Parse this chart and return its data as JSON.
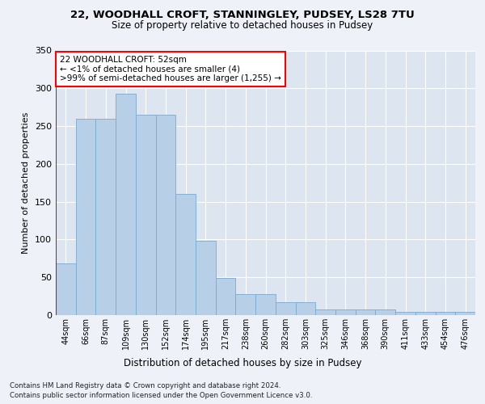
{
  "title1": "22, WOODHALL CROFT, STANNINGLEY, PUDSEY, LS28 7TU",
  "title2": "Size of property relative to detached houses in Pudsey",
  "xlabel": "Distribution of detached houses by size in Pudsey",
  "ylabel": "Number of detached properties",
  "bar_labels": [
    "44sqm",
    "66sqm",
    "87sqm",
    "109sqm",
    "130sqm",
    "152sqm",
    "174sqm",
    "195sqm",
    "217sqm",
    "238sqm",
    "260sqm",
    "282sqm",
    "303sqm",
    "325sqm",
    "346sqm",
    "368sqm",
    "390sqm",
    "411sqm",
    "433sqm",
    "454sqm",
    "476sqm"
  ],
  "bar_values": [
    68,
    260,
    260,
    293,
    265,
    265,
    160,
    98,
    49,
    28,
    28,
    17,
    17,
    8,
    7,
    8,
    8,
    4,
    4,
    4,
    4
  ],
  "bar_color": "#b8cfe8",
  "bar_edge_color": "#7aaad0",
  "annotation_line1": "22 WOODHALL CROFT: 52sqm",
  "annotation_line2": "← <1% of detached houses are smaller (4)",
  "annotation_line3": ">99% of semi-detached houses are larger (1,255) →",
  "ylim": [
    0,
    350
  ],
  "yticks": [
    0,
    50,
    100,
    150,
    200,
    250,
    300,
    350
  ],
  "footer1": "Contains HM Land Registry data © Crown copyright and database right 2024.",
  "footer2": "Contains public sector information licensed under the Open Government Licence v3.0.",
  "fig_bg_color": "#eef2f8",
  "plot_bg_color": "#dde6f0"
}
